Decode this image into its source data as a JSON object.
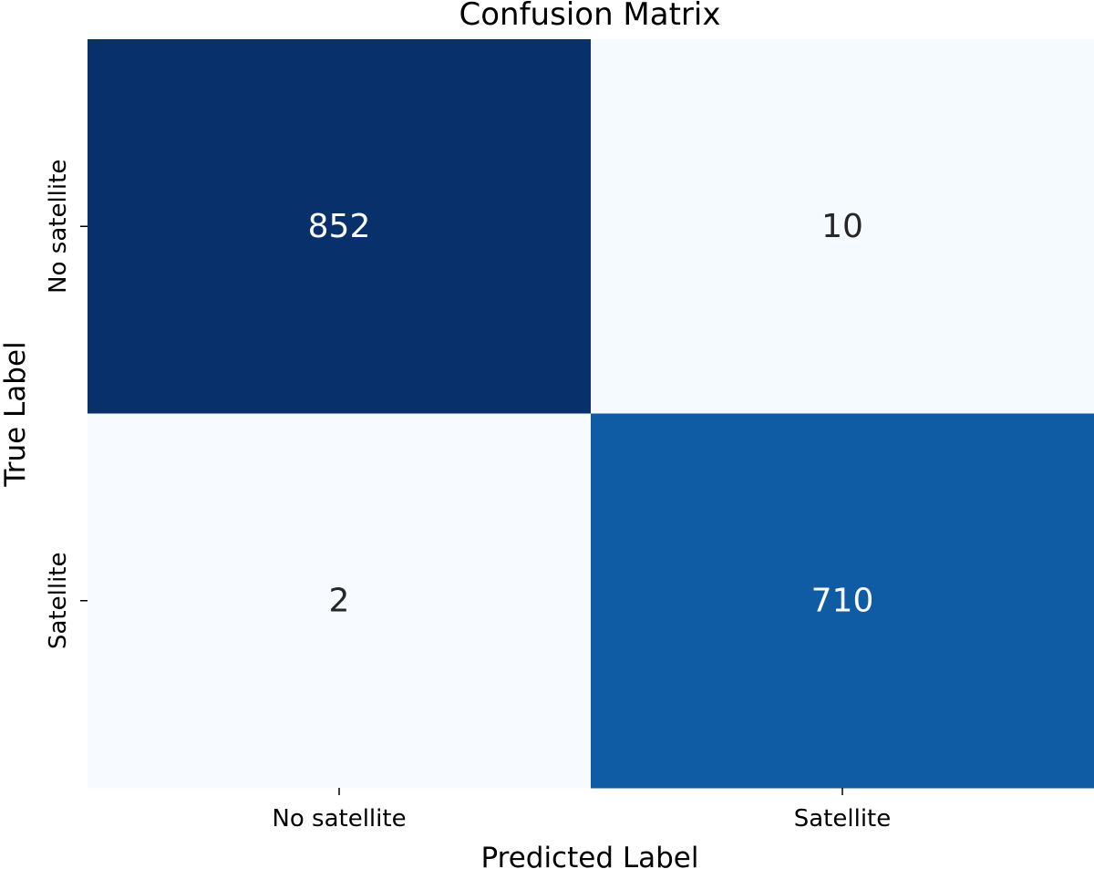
{
  "chart_data": {
    "type": "heatmap",
    "title": "Confusion Matrix",
    "xlabel": "Predicted Label",
    "ylabel": "True Label",
    "x_categories": [
      "No satellite",
      "Satellite"
    ],
    "y_categories": [
      "No satellite",
      "Satellite"
    ],
    "values": [
      [
        852,
        10
      ],
      [
        2,
        710
      ]
    ],
    "colormap": "Blues",
    "colorbar": false,
    "grid": false,
    "colors": {
      "high": "#08306b",
      "mid_high": "#105ba4",
      "low": "#f7fbff",
      "text_dark": "#262626",
      "text_light": "#ffffff"
    }
  }
}
